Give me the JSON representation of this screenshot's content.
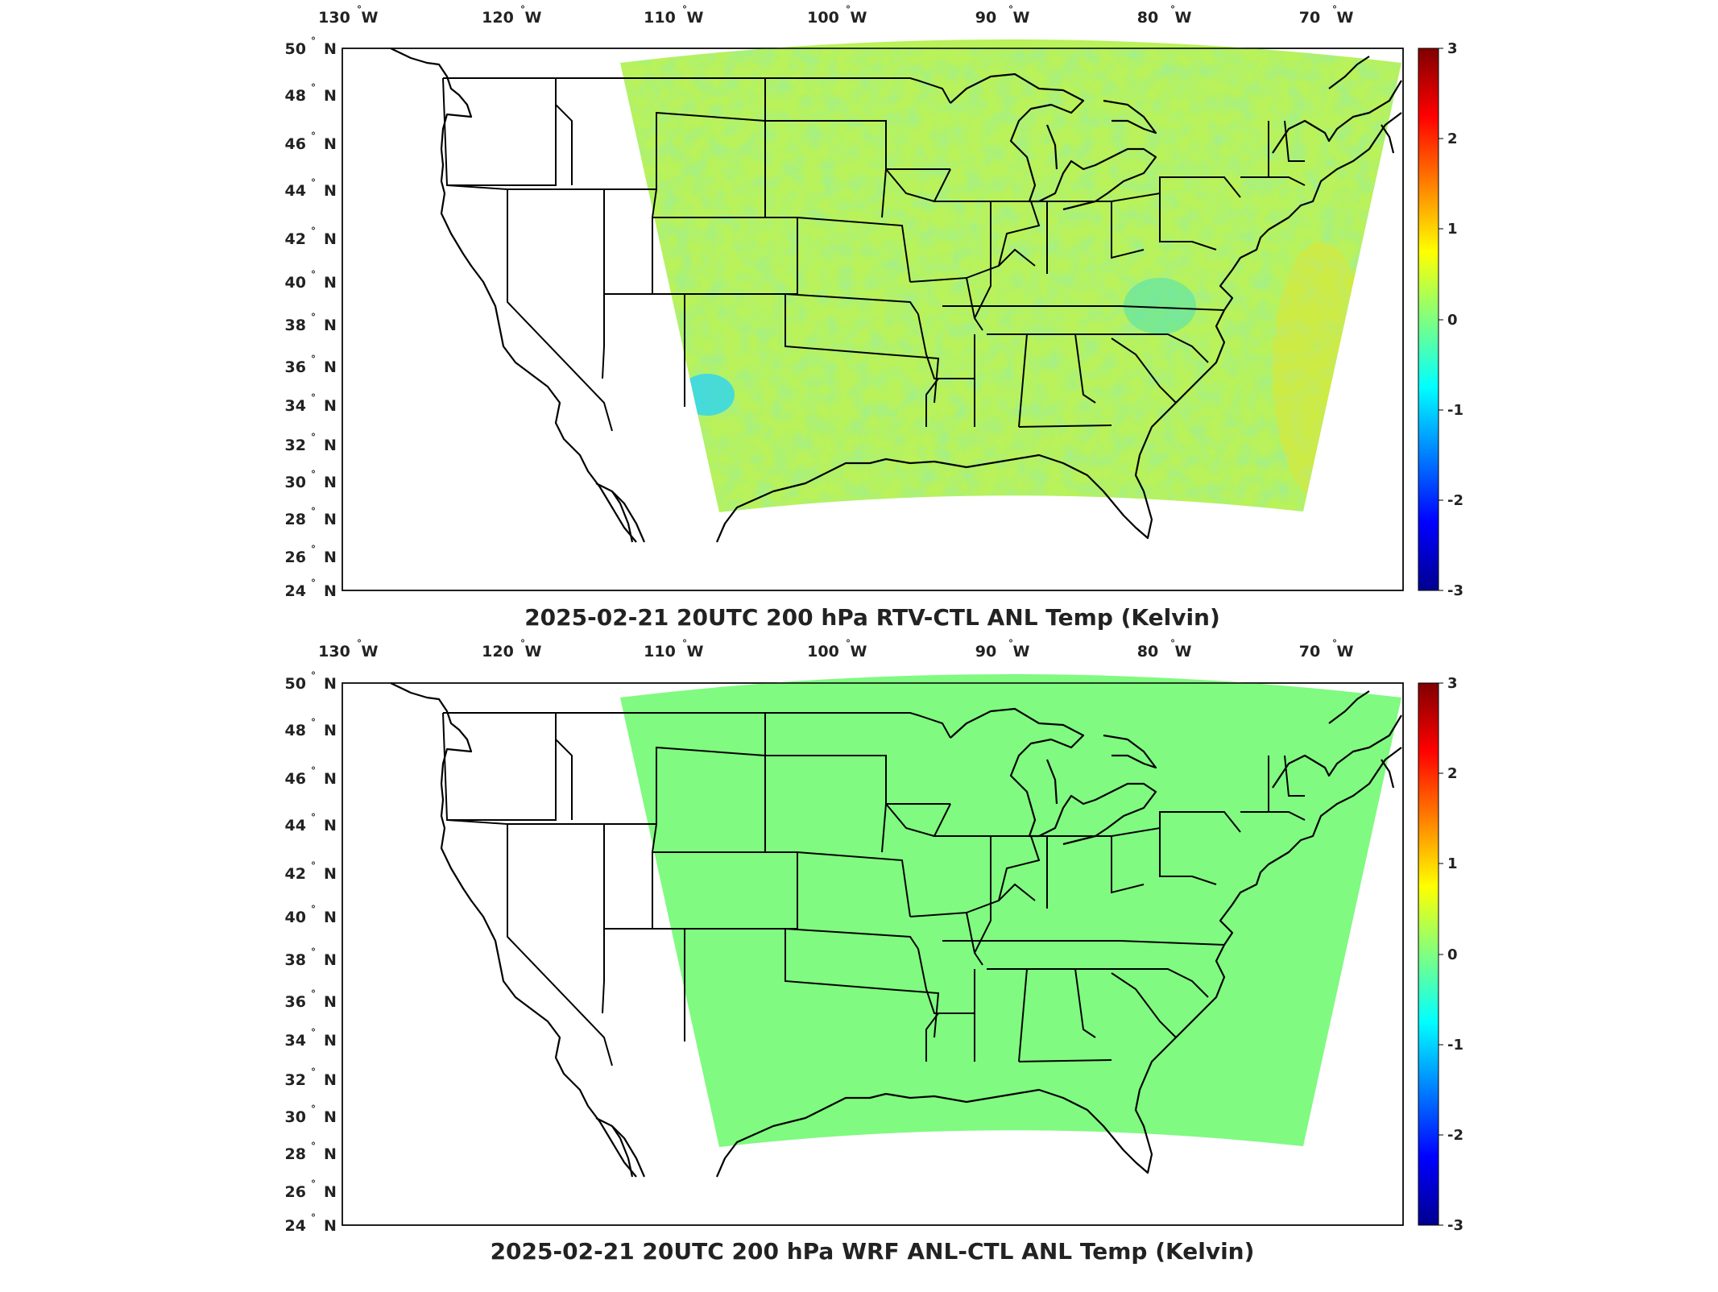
{
  "colors": {
    "domain_top": "#b9f25a",
    "domain_bottom": "#80fa80",
    "cold_patch": "#34d8f0",
    "warm_patch": "#f3b020",
    "frame": "#000000"
  },
  "maps": [
    {
      "id": "top",
      "title": "2025-02-21 20UTC 200 hPa RTV-CTL ANL Temp (Kelvin)",
      "lon_ticks": [
        "130",
        "120",
        "110",
        "100",
        "90",
        "80",
        "70"
      ],
      "lon_hemi": "W",
      "lat_ticks": [
        "50",
        "48",
        "46",
        "44",
        "42",
        "40",
        "38",
        "36",
        "34",
        "32",
        "30",
        "28",
        "26",
        "24"
      ],
      "lat_hemi": "N",
      "colorbar_ticks": [
        "3",
        "2",
        "1",
        "0",
        "-1",
        "-2",
        "-3"
      ]
    },
    {
      "id": "bottom",
      "title": "2025-02-21 20UTC 200 hPa WRF ANL-CTL ANL Temp (Kelvin)",
      "lon_ticks": [
        "130",
        "120",
        "110",
        "100",
        "90",
        "80",
        "70"
      ],
      "lon_hemi": "W",
      "lat_ticks": [
        "50",
        "48",
        "46",
        "44",
        "42",
        "40",
        "38",
        "36",
        "34",
        "32",
        "30",
        "28",
        "26",
        "24"
      ],
      "lat_hemi": "N",
      "colorbar_ticks": [
        "3",
        "2",
        "1",
        "0",
        "-1",
        "-2",
        "-3"
      ]
    }
  ]
}
